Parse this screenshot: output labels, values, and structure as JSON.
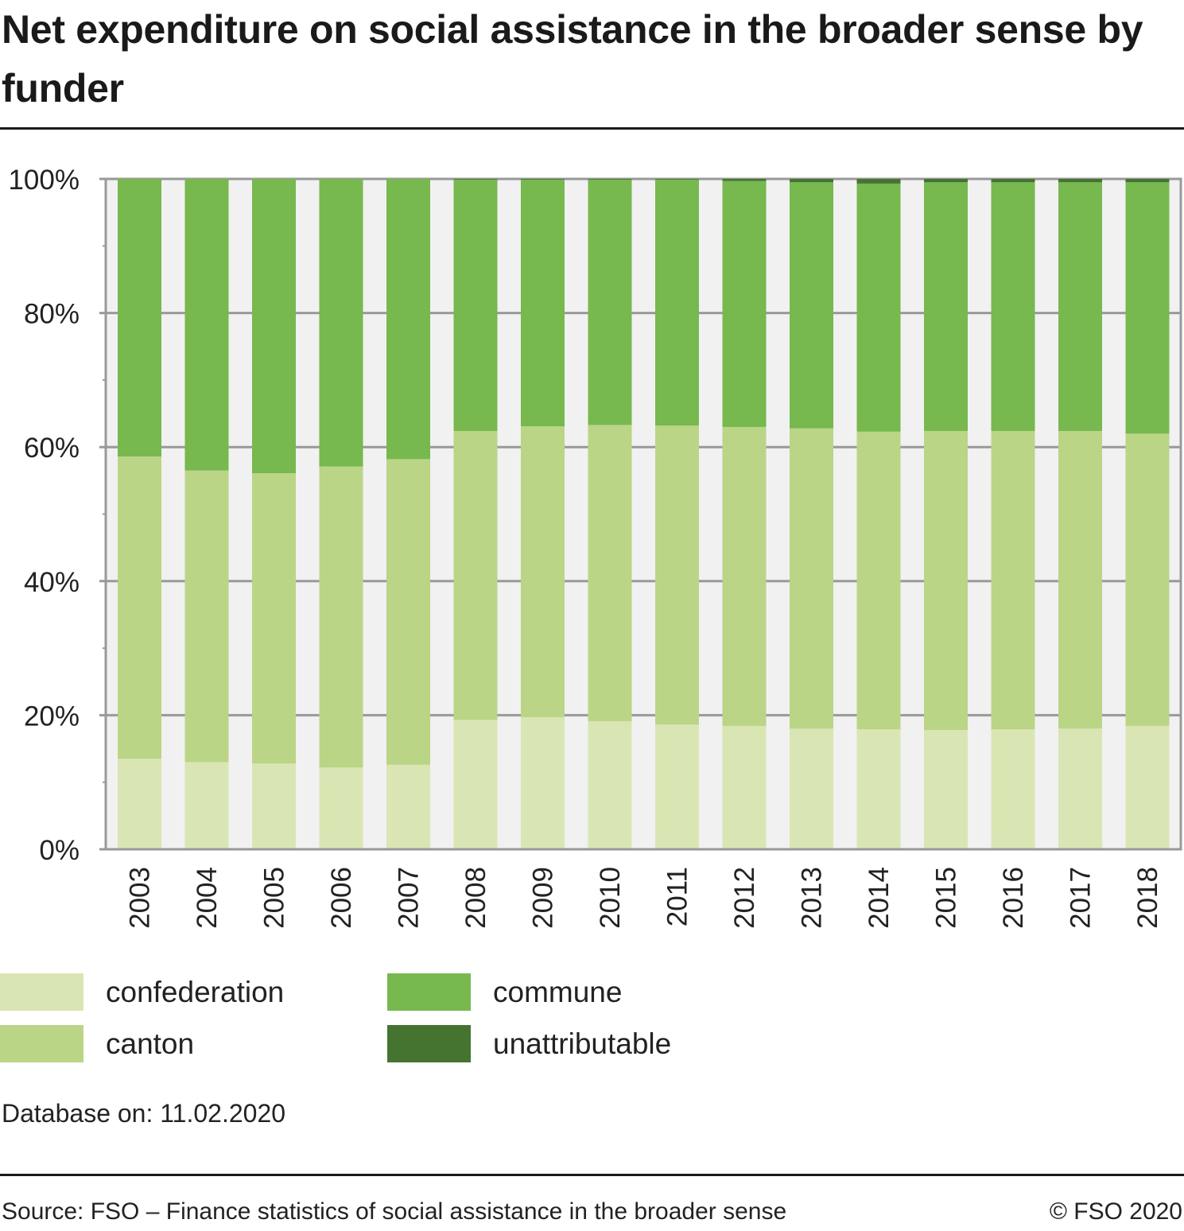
{
  "header": {
    "title": "Net expenditure on social assistance in the broader sense by funder"
  },
  "chart_data": {
    "type": "bar",
    "stacked": true,
    "title": "Net expenditure on social assistance in the broader sense by funder",
    "xlabel": "",
    "ylabel": "",
    "ylim": [
      0,
      100
    ],
    "y_ticks": [
      "0%",
      "20%",
      "40%",
      "60%",
      "80%",
      "100%"
    ],
    "y_tick_values": [
      0,
      20,
      40,
      60,
      80,
      100
    ],
    "grid": true,
    "legend_position": "bottom",
    "categories": [
      "2003",
      "2004",
      "2005",
      "2006",
      "2007",
      "2008",
      "2009",
      "2010",
      "2011",
      "2012",
      "2013",
      "2014",
      "2015",
      "2016",
      "2017",
      "2018"
    ],
    "series": [
      {
        "name": "confederation",
        "color": "#d9e6b3",
        "values": [
          13.5,
          13.0,
          12.8,
          12.2,
          12.6,
          19.3,
          19.7,
          19.1,
          18.6,
          18.4,
          18.0,
          17.9,
          17.8,
          17.9,
          18.0,
          18.4
        ]
      },
      {
        "name": "canton",
        "color": "#bad586",
        "values": [
          45.1,
          43.5,
          43.3,
          44.9,
          45.6,
          43.1,
          43.4,
          44.2,
          44.6,
          44.6,
          44.8,
          44.4,
          44.6,
          44.5,
          44.4,
          43.6
        ]
      },
      {
        "name": "commune",
        "color": "#77b84f",
        "values": [
          41.4,
          43.5,
          43.9,
          42.9,
          41.8,
          37.5,
          36.8,
          36.6,
          36.7,
          36.7,
          36.7,
          37.0,
          37.1,
          37.1,
          37.1,
          37.5
        ]
      },
      {
        "name": "unattributable",
        "color": "#457431",
        "values": [
          0,
          0,
          0,
          0,
          0,
          0.1,
          0.1,
          0.1,
          0.1,
          0.3,
          0.5,
          0.7,
          0.5,
          0.5,
          0.5,
          0.5
        ]
      }
    ]
  },
  "legend": {
    "items": [
      {
        "label": "confederation",
        "color": "#d9e6b3"
      },
      {
        "label": "canton",
        "color": "#bad586"
      },
      {
        "label": "commune",
        "color": "#77b84f"
      },
      {
        "label": "unattributable",
        "color": "#457431"
      }
    ]
  },
  "footer": {
    "database_note": "Database on: 11.02.2020",
    "source": "Source: FSO – Finance statistics of social assistance in the broader sense",
    "copyright": "© FSO 2020"
  },
  "colors": {
    "plot_background": "#f1f1f1",
    "gridline": "#999999"
  }
}
